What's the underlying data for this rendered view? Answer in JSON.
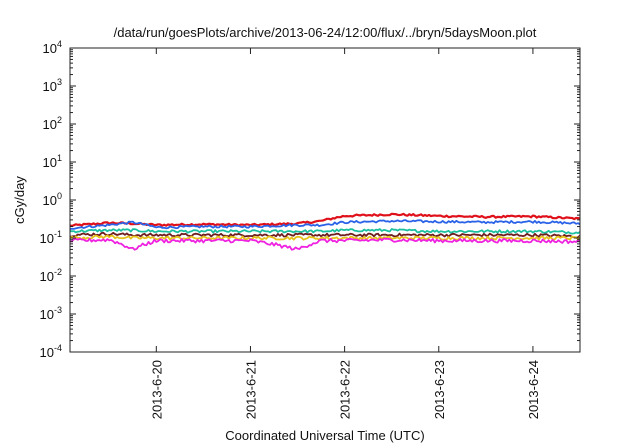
{
  "chart_data": {
    "type": "line",
    "title": "/data/run/goesPlots/archive/2013-06-24/12:00/flux/../bryn/5daysMoon.plot",
    "xlabel": "Coordinated Universal Time (UTC)",
    "ylabel": "cGy/day",
    "y_scale": "log",
    "ylim": [
      0.0001,
      10000
    ],
    "y_ticks": [
      {
        "value": 0.0001,
        "base": "10",
        "exp": "-4"
      },
      {
        "value": 0.001,
        "base": "10",
        "exp": "-3"
      },
      {
        "value": 0.01,
        "base": "10",
        "exp": "-2"
      },
      {
        "value": 0.1,
        "base": "10",
        "exp": "-1"
      },
      {
        "value": 1,
        "base": "10",
        "exp": "0"
      },
      {
        "value": 10,
        "base": "10",
        "exp": "1"
      },
      {
        "value": 100,
        "base": "10",
        "exp": "2"
      },
      {
        "value": 1000,
        "base": "10",
        "exp": "3"
      },
      {
        "value": 10000,
        "base": "10",
        "exp": "4"
      }
    ],
    "xlim": [
      "2013-06-19 02:00",
      "2013-06-24 12:00"
    ],
    "x_ticks": [
      "2013-6-20",
      "2013-6-21",
      "2013-6-22",
      "2013-6-23",
      "2013-6-24"
    ],
    "grid": false,
    "legend": "none",
    "x": [
      "2013-06-19 02:00",
      "2013-06-19 12:00",
      "2013-06-19 18:00",
      "2013-06-20 00:00",
      "2013-06-20 12:00",
      "2013-06-21 00:00",
      "2013-06-21 12:00",
      "2013-06-21 18:00",
      "2013-06-22 00:00",
      "2013-06-22 12:00",
      "2013-06-23 00:00",
      "2013-06-23 12:00",
      "2013-06-24 00:00",
      "2013-06-24 12:00"
    ],
    "series": [
      {
        "color": "#e0101a",
        "values": [
          0.21,
          0.25,
          0.24,
          0.22,
          0.23,
          0.22,
          0.24,
          0.28,
          0.38,
          0.42,
          0.38,
          0.36,
          0.37,
          0.32
        ]
      },
      {
        "color": "#2a62e8",
        "values": [
          0.18,
          0.22,
          0.26,
          0.19,
          0.2,
          0.2,
          0.22,
          0.22,
          0.26,
          0.28,
          0.27,
          0.26,
          0.27,
          0.24
        ]
      },
      {
        "color": "#1cc0a0",
        "values": [
          0.15,
          0.16,
          0.16,
          0.15,
          0.15,
          0.15,
          0.15,
          0.15,
          0.16,
          0.16,
          0.15,
          0.15,
          0.15,
          0.14
        ]
      },
      {
        "color": "#6e1e1e",
        "values": [
          0.12,
          0.13,
          0.12,
          0.12,
          0.12,
          0.12,
          0.12,
          0.12,
          0.12,
          0.12,
          0.12,
          0.12,
          0.12,
          0.11
        ]
      },
      {
        "color": "#e6c21a",
        "values": [
          0.1,
          0.11,
          0.1,
          0.1,
          0.1,
          0.1,
          0.1,
          0.1,
          0.1,
          0.1,
          0.1,
          0.1,
          0.1,
          0.1
        ]
      },
      {
        "color": "#ee22e0",
        "values": [
          0.085,
          0.09,
          0.05,
          0.085,
          0.085,
          0.085,
          0.05,
          0.085,
          0.085,
          0.09,
          0.085,
          0.085,
          0.085,
          0.08
        ]
      }
    ]
  }
}
